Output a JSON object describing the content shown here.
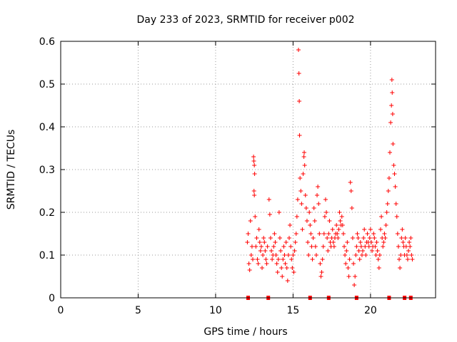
{
  "chart_data": {
    "type": "scatter",
    "title": "Day 233 of 2023, SRMTID for receiver p002",
    "xlabel": "GPS time / hours",
    "ylabel": "SRMTID / TECUs",
    "xlim": [
      0,
      24.2
    ],
    "ylim": [
      0,
      0.6
    ],
    "xticks": [
      0,
      5,
      10,
      15,
      20
    ],
    "xtick_labels": [
      "0",
      "5",
      "10",
      "15",
      "20"
    ],
    "yticks": [
      0,
      0.1,
      0.2,
      0.3,
      0.4,
      0.5,
      0.6
    ],
    "ytick_labels": [
      "0",
      "0.1",
      "0.2",
      "0.3",
      "0.4",
      "0.5",
      "0.6"
    ],
    "grid": true,
    "grid_style": "dotted",
    "marker": "+",
    "series": [
      {
        "name": "SRMTID",
        "color": "#ff0000",
        "points": [
          [
            12.05,
            0.13
          ],
          [
            12.1,
            0.15
          ],
          [
            12.15,
            0.08
          ],
          [
            12.2,
            0.065
          ],
          [
            12.25,
            0.18
          ],
          [
            12.3,
            0.1
          ],
          [
            12.35,
            0.12
          ],
          [
            12.4,
            0.09
          ],
          [
            12.45,
            0.33
          ],
          [
            12.47,
            0.32
          ],
          [
            12.5,
            0.31
          ],
          [
            12.52,
            0.29
          ],
          [
            12.48,
            0.25
          ],
          [
            12.5,
            0.24
          ],
          [
            12.55,
            0.19
          ],
          [
            12.6,
            0.12
          ],
          [
            12.65,
            0.14
          ],
          [
            12.7,
            0.09
          ],
          [
            12.75,
            0.08
          ],
          [
            12.8,
            0.16
          ],
          [
            12.85,
            0.13
          ],
          [
            12.9,
            0.11
          ],
          [
            12.95,
            0.12
          ],
          [
            13.0,
            0.07
          ],
          [
            13.05,
            0.1
          ],
          [
            13.1,
            0.14
          ],
          [
            13.15,
            0.13
          ],
          [
            13.2,
            0.11
          ],
          [
            13.25,
            0.09
          ],
          [
            13.3,
            0.08
          ],
          [
            13.35,
            0.12
          ],
          [
            13.45,
            0.23
          ],
          [
            13.5,
            0.195
          ],
          [
            13.55,
            0.14
          ],
          [
            13.6,
            0.11
          ],
          [
            13.65,
            0.09
          ],
          [
            13.7,
            0.1
          ],
          [
            13.75,
            0.12
          ],
          [
            13.8,
            0.15
          ],
          [
            13.85,
            0.13
          ],
          [
            13.9,
            0.1
          ],
          [
            13.95,
            0.08
          ],
          [
            14.0,
            0.06
          ],
          [
            14.05,
            0.09
          ],
          [
            14.1,
            0.2
          ],
          [
            14.15,
            0.14
          ],
          [
            14.2,
            0.11
          ],
          [
            14.25,
            0.07
          ],
          [
            14.3,
            0.05
          ],
          [
            14.35,
            0.09
          ],
          [
            14.4,
            0.12
          ],
          [
            14.45,
            0.1
          ],
          [
            14.5,
            0.08
          ],
          [
            14.55,
            0.13
          ],
          [
            14.6,
            0.07
          ],
          [
            14.65,
            0.04
          ],
          [
            14.7,
            0.1
          ],
          [
            14.75,
            0.14
          ],
          [
            14.8,
            0.17
          ],
          [
            14.85,
            0.12
          ],
          [
            14.9,
            0.09
          ],
          [
            14.95,
            0.07
          ],
          [
            15.0,
            0.1
          ],
          [
            15.05,
            0.06
          ],
          [
            15.1,
            0.11
          ],
          [
            15.15,
            0.13
          ],
          [
            15.2,
            0.15
          ],
          [
            15.25,
            0.19
          ],
          [
            15.3,
            0.23
          ],
          [
            15.35,
            0.58
          ],
          [
            15.38,
            0.525
          ],
          [
            15.4,
            0.46
          ],
          [
            15.42,
            0.38
          ],
          [
            15.45,
            0.28
          ],
          [
            15.5,
            0.25
          ],
          [
            15.55,
            0.22
          ],
          [
            15.6,
            0.16
          ],
          [
            15.65,
            0.29
          ],
          [
            15.7,
            0.33
          ],
          [
            15.72,
            0.34
          ],
          [
            15.75,
            0.31
          ],
          [
            15.8,
            0.24
          ],
          [
            15.85,
            0.21
          ],
          [
            15.9,
            0.18
          ],
          [
            15.95,
            0.13
          ],
          [
            16.0,
            0.1
          ],
          [
            16.05,
            0.2
          ],
          [
            16.1,
            0.17
          ],
          [
            16.15,
            0.15
          ],
          [
            16.2,
            0.12
          ],
          [
            16.25,
            0.09
          ],
          [
            16.3,
            0.14
          ],
          [
            16.35,
            0.21
          ],
          [
            16.4,
            0.18
          ],
          [
            16.45,
            0.12
          ],
          [
            16.5,
            0.1
          ],
          [
            16.55,
            0.24
          ],
          [
            16.6,
            0.26
          ],
          [
            16.65,
            0.22
          ],
          [
            16.7,
            0.15
          ],
          [
            16.75,
            0.08
          ],
          [
            16.8,
            0.05
          ],
          [
            16.85,
            0.06
          ],
          [
            16.9,
            0.09
          ],
          [
            16.95,
            0.12
          ],
          [
            17.0,
            0.15
          ],
          [
            17.05,
            0.19
          ],
          [
            17.1,
            0.23
          ],
          [
            17.15,
            0.2
          ],
          [
            17.2,
            0.14
          ],
          [
            17.25,
            0.11
          ],
          [
            17.3,
            0.15
          ],
          [
            17.35,
            0.18
          ],
          [
            17.4,
            0.13
          ],
          [
            17.45,
            0.12
          ],
          [
            17.5,
            0.14
          ],
          [
            17.55,
            0.16
          ],
          [
            17.6,
            0.13
          ],
          [
            17.65,
            0.12
          ],
          [
            17.7,
            0.14
          ],
          [
            17.75,
            0.15
          ],
          [
            17.8,
            0.17
          ],
          [
            17.85,
            0.15
          ],
          [
            17.9,
            0.14
          ],
          [
            17.95,
            0.16
          ],
          [
            18.0,
            0.2
          ],
          [
            18.05,
            0.18
          ],
          [
            18.1,
            0.17
          ],
          [
            18.15,
            0.19
          ],
          [
            18.2,
            0.17
          ],
          [
            18.25,
            0.15
          ],
          [
            18.3,
            0.12
          ],
          [
            18.35,
            0.1
          ],
          [
            18.4,
            0.08
          ],
          [
            18.45,
            0.11
          ],
          [
            18.5,
            0.13
          ],
          [
            18.55,
            0.07
          ],
          [
            18.6,
            0.05
          ],
          [
            18.65,
            0.09
          ],
          [
            18.7,
            0.27
          ],
          [
            18.75,
            0.25
          ],
          [
            18.8,
            0.21
          ],
          [
            18.85,
            0.14
          ],
          [
            18.9,
            0.08
          ],
          [
            18.95,
            0.03
          ],
          [
            19.0,
            0.05
          ],
          [
            19.05,
            0.1
          ],
          [
            19.1,
            0.12
          ],
          [
            19.15,
            0.15
          ],
          [
            19.2,
            0.14
          ],
          [
            19.25,
            0.11
          ],
          [
            19.3,
            0.09
          ],
          [
            19.35,
            0.13
          ],
          [
            19.4,
            0.12
          ],
          [
            19.45,
            0.1
          ],
          [
            19.5,
            0.11
          ],
          [
            19.55,
            0.14
          ],
          [
            19.6,
            0.16
          ],
          [
            19.65,
            0.12
          ],
          [
            19.7,
            0.1
          ],
          [
            19.75,
            0.13
          ],
          [
            19.8,
            0.15
          ],
          [
            19.85,
            0.13
          ],
          [
            19.9,
            0.12
          ],
          [
            19.95,
            0.14
          ],
          [
            20.0,
            0.16
          ],
          [
            20.05,
            0.13
          ],
          [
            20.1,
            0.11
          ],
          [
            20.15,
            0.12
          ],
          [
            20.2,
            0.15
          ],
          [
            20.25,
            0.14
          ],
          [
            20.3,
            0.12
          ],
          [
            20.35,
            0.1
          ],
          [
            20.4,
            0.13
          ],
          [
            20.45,
            0.11
          ],
          [
            20.5,
            0.09
          ],
          [
            20.55,
            0.07
          ],
          [
            20.6,
            0.1
          ],
          [
            20.65,
            0.16
          ],
          [
            20.7,
            0.19
          ],
          [
            20.75,
            0.14
          ],
          [
            20.8,
            0.12
          ],
          [
            20.85,
            0.13
          ],
          [
            20.9,
            0.15
          ],
          [
            20.95,
            0.14
          ],
          [
            21.0,
            0.17
          ],
          [
            21.05,
            0.2
          ],
          [
            21.1,
            0.22
          ],
          [
            21.15,
            0.25
          ],
          [
            21.2,
            0.28
          ],
          [
            21.25,
            0.34
          ],
          [
            21.3,
            0.41
          ],
          [
            21.35,
            0.45
          ],
          [
            21.38,
            0.51
          ],
          [
            21.4,
            0.48
          ],
          [
            21.43,
            0.43
          ],
          [
            21.45,
            0.36
          ],
          [
            21.5,
            0.31
          ],
          [
            21.55,
            0.29
          ],
          [
            21.6,
            0.26
          ],
          [
            21.65,
            0.22
          ],
          [
            21.7,
            0.19
          ],
          [
            21.75,
            0.15
          ],
          [
            21.8,
            0.12
          ],
          [
            21.85,
            0.09
          ],
          [
            21.9,
            0.07
          ],
          [
            21.95,
            0.1
          ],
          [
            22.0,
            0.14
          ],
          [
            22.05,
            0.16
          ],
          [
            22.1,
            0.13
          ],
          [
            22.15,
            0.12
          ],
          [
            22.2,
            0.1
          ],
          [
            22.25,
            0.14
          ],
          [
            22.3,
            0.12
          ],
          [
            22.35,
            0.1
          ],
          [
            22.4,
            0.09
          ],
          [
            22.45,
            0.11
          ],
          [
            22.5,
            0.13
          ],
          [
            22.55,
            0.12
          ],
          [
            22.6,
            0.14
          ],
          [
            22.65,
            0.1
          ],
          [
            22.7,
            0.09
          ]
        ]
      }
    ],
    "zero_markers_x": [
      12.1,
      13.4,
      16.1,
      17.3,
      19.1,
      21.2,
      22.2,
      22.6
    ]
  }
}
